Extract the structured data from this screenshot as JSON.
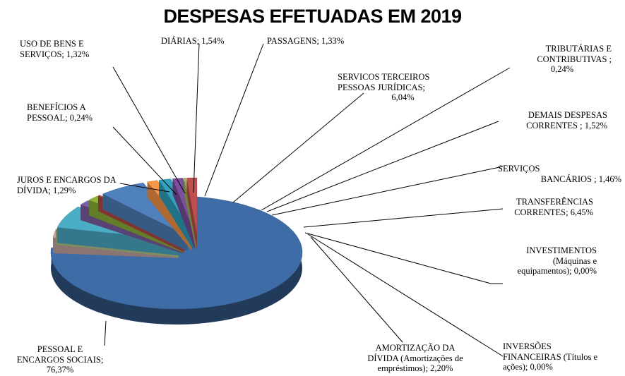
{
  "chart_data": {
    "type": "pie",
    "title": "DESPESAS EFETUADAS EM 2019",
    "slices": [
      {
        "label": "PESSOAL E ENCARGOS SOCIAIS",
        "value": 76.37,
        "display": "76,37%",
        "color": "#3e6ca6"
      },
      {
        "label": "AMORTIZAÇÃO DA DÍVIDA (Amortizações de empréstimos)",
        "value": 2.2,
        "display": "2,20%",
        "color": "#c7a7a4"
      },
      {
        "label": "INVERSÕES FINANCEIRAS (Títulos e ações)",
        "value": 0.0,
        "display": "0,00%",
        "color": "#8e9fc0"
      },
      {
        "label": "INVESTIMENTOS (Máquinas e equipamentos)",
        "value": 0.0,
        "display": "0,00%",
        "color": "#b6c98a"
      },
      {
        "label": "TRANSFERÊNCIAS CORRENTES",
        "value": 6.45,
        "display": "6,45%",
        "color": "#4bacc6"
      },
      {
        "label": "SERVIÇOS BANCÁRIOS",
        "value": 1.46,
        "display": "1,46%",
        "color": "#7f5fa6"
      },
      {
        "label": "DEMAIS DESPESAS CORRENTES",
        "value": 1.52,
        "display": "1,52%",
        "color": "#8db33b"
      },
      {
        "label": "TRIBUTÁRIAS E CONTRIBUTIVAS",
        "value": 0.24,
        "display": "0,24%",
        "color": "#b94a48"
      },
      {
        "label": "SERVICOS TERCEIROS PESSOAS JURÍDICAS",
        "value": 6.04,
        "display": "6,04%",
        "color": "#4f81bd"
      },
      {
        "label": "PASSAGENS",
        "value": 1.33,
        "display": "1,33%",
        "color": "#f79646"
      },
      {
        "label": "DIÁRIAS",
        "value": 1.54,
        "display": "1,54%",
        "color": "#31a3c0"
      },
      {
        "label": "USO DE BENS E SERVIÇOS",
        "value": 1.32,
        "display": "1,32%",
        "color": "#7b4f9e"
      },
      {
        "label": "BENEFÍCIOS A PESSOAL",
        "value": 0.24,
        "display": "0,24%",
        "color": "#9bbb59"
      },
      {
        "label": "JUROS E ENCARGOS DA DÍVIDA",
        "value": 1.29,
        "display": "1,29%",
        "color": "#c0504d"
      }
    ],
    "labels": {
      "pessoal_l1": "PESSOAL E",
      "pessoal_l2": "ENCARGOS SOCIAIS;",
      "pessoal_l3": "76,37%",
      "amort_l1": "AMORTIZAÇÃO DA",
      "amort_l2": "DÍVIDA (Amortizações de",
      "amort_l3": "empréstimos); 2,20%",
      "inv_fin_l1": "INVERSÕES",
      "inv_fin_l2": "FINANCEIRAS (Títulos e",
      "inv_fin_l3": "ações); 0,00%",
      "invest_l1": "INVESTIMENTOS",
      "invest_l2": "(Máquinas e",
      "invest_l3": "equipamentos); 0,00%",
      "transf_l1": "TRANSFERÊNCIAS",
      "transf_l2": "CORRENTES; 6,45%",
      "banc_l1": "SERVIÇOS",
      "banc_l2": "BANCÁRIOS ; 1,46%",
      "demais_l1": "DEMAIS DESPESAS",
      "demais_l2": "CORRENTES ; 1,52%",
      "trib_l1": "TRIBUTÁRIAS E",
      "trib_l2": "CONTRIBUTIVAS ;",
      "trib_l3": "0,24%",
      "serv_l1": "SERVICOS TERCEIROS",
      "serv_l2": "PESSOAS JURÍDICAS;",
      "serv_l3": "6,04%",
      "pass": "PASSAGENS; 1,33%",
      "diarias": "DIÁRIAS; 1,54%",
      "uso_l1": "USO DE BENS E",
      "uso_l2": "SERVIÇOS; 1,32%",
      "benef_l1": "BENEFÍCIOS A",
      "benef_l2": "PESSOAL; 0,24%",
      "juros_l1": "JUROS E ENCARGOS DA",
      "juros_l2": "DÍVIDA; 1,29%"
    }
  }
}
